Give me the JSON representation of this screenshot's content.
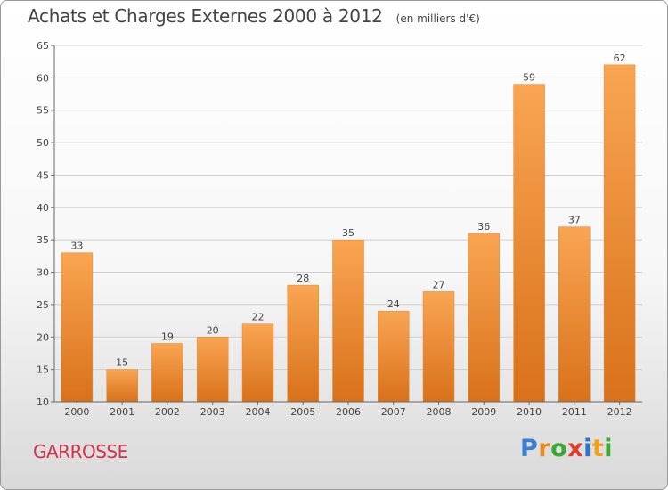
{
  "title": "Achats et Charges Externes 2000 à 2012",
  "unit_note": "(en milliers d'€)",
  "location": "GARROSSE",
  "logo": {
    "letters": [
      "P",
      "r",
      "o",
      "x",
      "i",
      "t",
      "i"
    ],
    "colors": [
      "#3a7fd0",
      "#ec8c1c",
      "#3aa935",
      "#e03b2b",
      "#2b74c8",
      "#f1a11d",
      "#3aa935"
    ]
  },
  "colors": {
    "bar_light": "#f9a552",
    "bar_dark": "#d9711a",
    "axis": "#666666",
    "grid": "#cfcfcf",
    "title_text": "#444444",
    "location_text": "#d0334f"
  },
  "chart_data": {
    "type": "bar",
    "categories": [
      "2000",
      "2001",
      "2002",
      "2003",
      "2004",
      "2005",
      "2006",
      "2007",
      "2008",
      "2009",
      "2010",
      "2011",
      "2012"
    ],
    "values": [
      33,
      15,
      19,
      20,
      22,
      28,
      35,
      24,
      27,
      36,
      59,
      37,
      62
    ],
    "xlabel": "",
    "ylabel": "",
    "ylim": [
      10,
      65
    ],
    "yticks": [
      10,
      15,
      20,
      25,
      30,
      35,
      40,
      45,
      50,
      55,
      60,
      65
    ],
    "grid": "horizontal",
    "data_labels": true
  }
}
